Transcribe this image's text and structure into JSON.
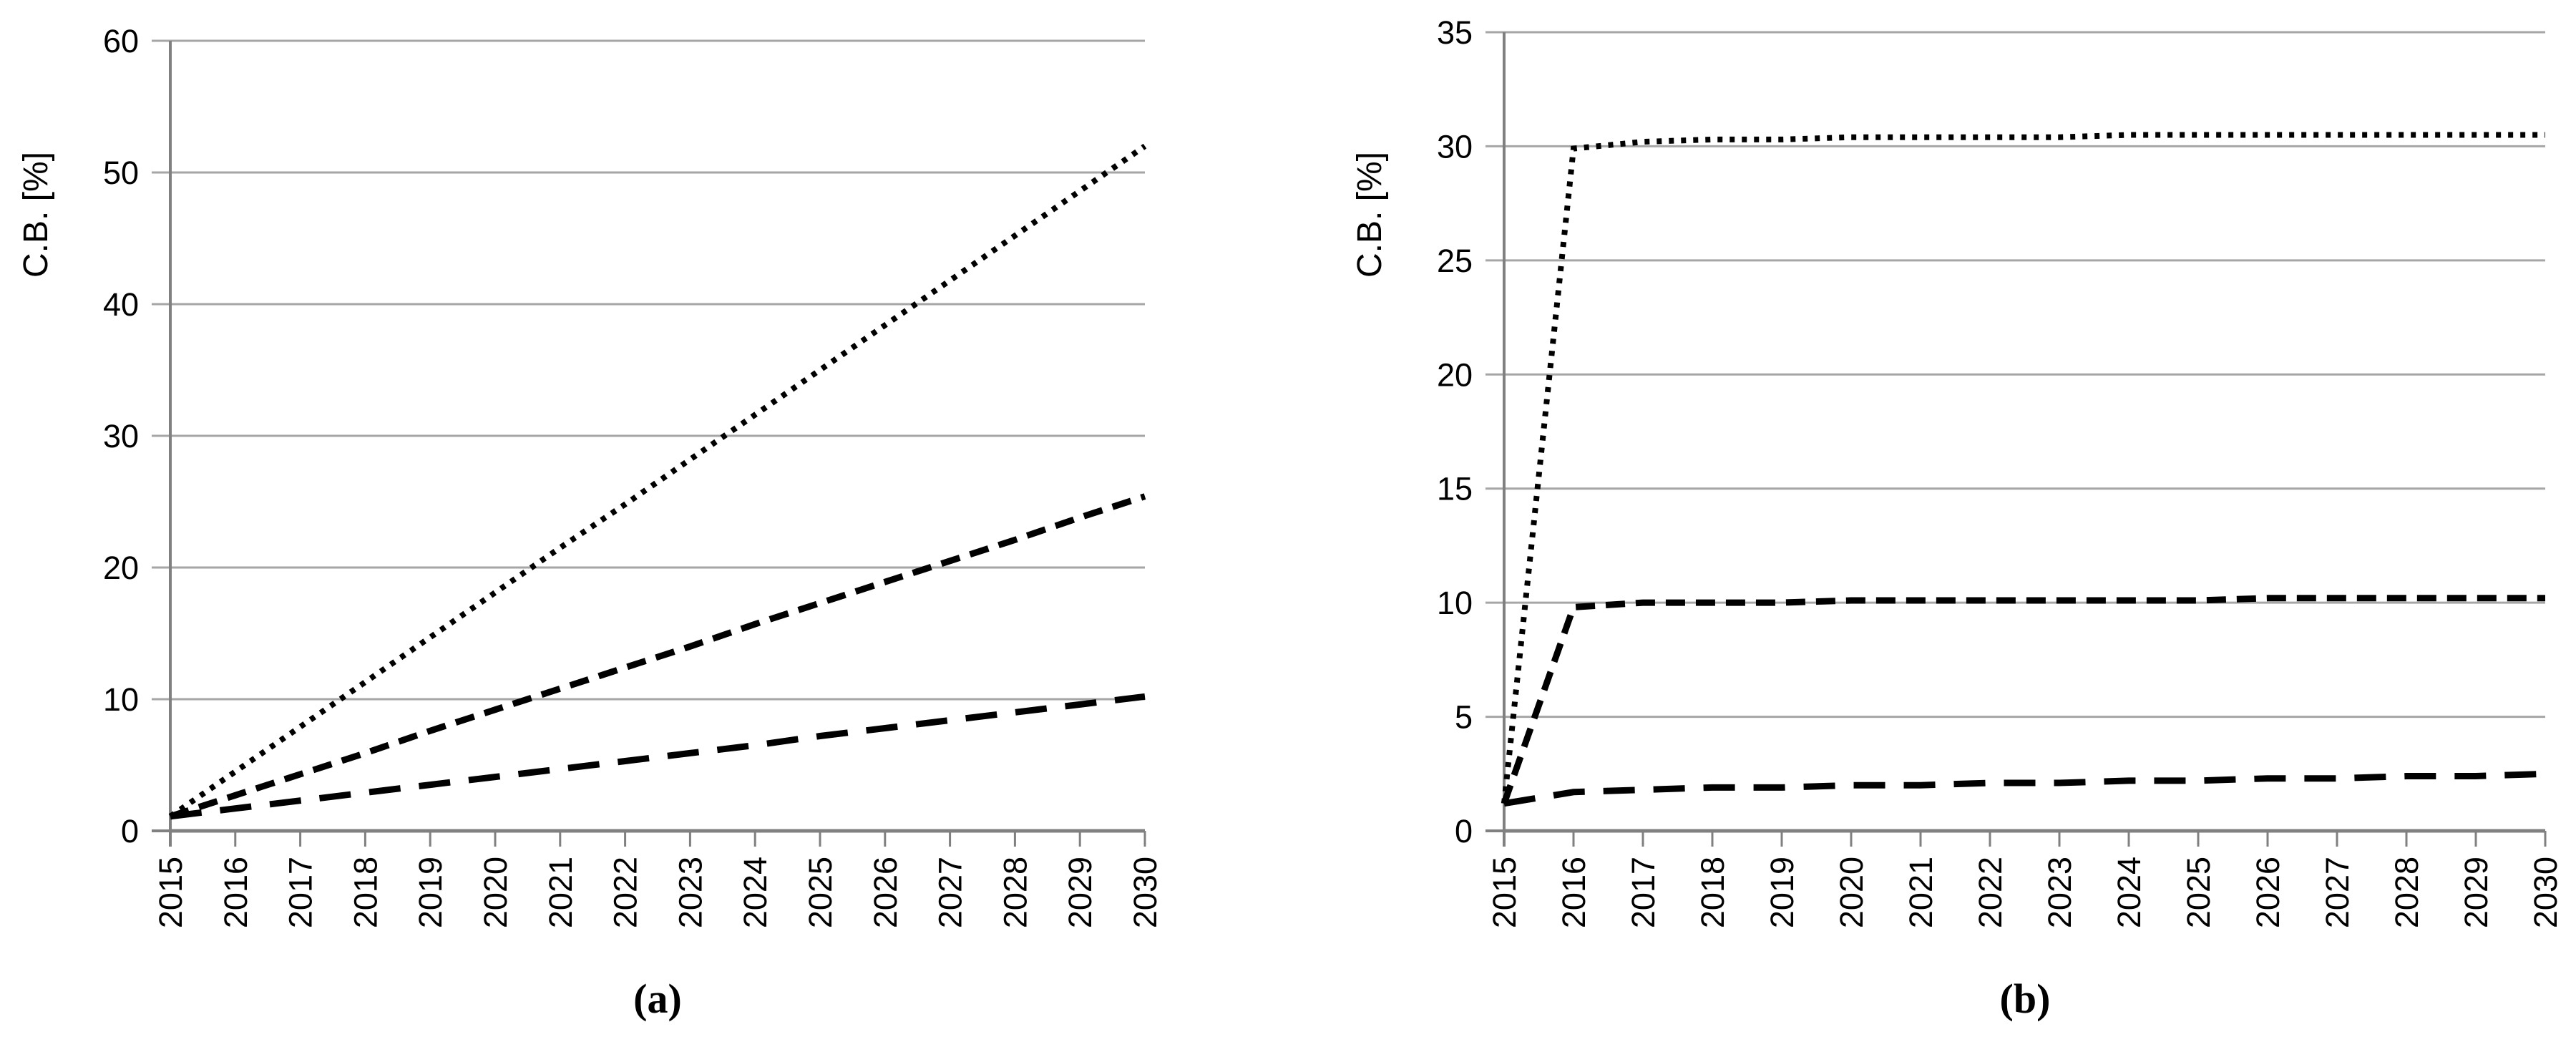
{
  "page": {
    "background": "#ffffff"
  },
  "chart_data": [
    {
      "type": "line",
      "caption": "(a)",
      "title": "",
      "ylabel": "C.B. [%]",
      "xlabel": "",
      "legend": "none",
      "grid": "horizontal-only",
      "xlim": [
        2015,
        2030
      ],
      "ylim": [
        0,
        60
      ],
      "yticks": [
        0,
        10,
        20,
        30,
        40,
        50,
        60
      ],
      "x": [
        2015,
        2016,
        2017,
        2018,
        2019,
        2020,
        2021,
        2022,
        2023,
        2024,
        2025,
        2026,
        2027,
        2028,
        2029,
        2030
      ],
      "xtick_labels": [
        "2015",
        "2016",
        "2017",
        "2018",
        "2019",
        "2020",
        "2021",
        "2022",
        "2023",
        "2024",
        "2025",
        "2026",
        "2027",
        "2028",
        "2029",
        "2030"
      ],
      "colors": {
        "line": "#000000",
        "grid": "#a6a6a6",
        "axis": "#808080",
        "text": "#000000"
      },
      "series": [
        {
          "name": "dotted",
          "style": "dotted",
          "values": [
            1.1,
            4.5,
            7.9,
            11.3,
            14.7,
            18.1,
            21.5,
            24.8,
            28.2,
            31.6,
            35.0,
            38.4,
            41.8,
            45.2,
            48.6,
            52.0
          ]
        },
        {
          "name": "short-dash",
          "style": "short-dash",
          "values": [
            1.1,
            2.7,
            4.3,
            5.9,
            7.6,
            9.2,
            10.8,
            12.4,
            14.0,
            15.7,
            17.3,
            18.9,
            20.5,
            22.1,
            23.8,
            25.4
          ]
        },
        {
          "name": "long-dash",
          "style": "long-dash",
          "values": [
            1.1,
            1.7,
            2.3,
            2.9,
            3.5,
            4.1,
            4.7,
            5.3,
            5.9,
            6.5,
            7.2,
            7.8,
            8.4,
            9.0,
            9.6,
            10.2
          ]
        }
      ]
    },
    {
      "type": "line",
      "caption": "(b)",
      "title": "",
      "ylabel": "C.B. [%]",
      "xlabel": "",
      "legend": "none",
      "grid": "horizontal-only",
      "xlim": [
        2015,
        2030
      ],
      "ylim": [
        0,
        35
      ],
      "yticks": [
        0,
        5,
        10,
        15,
        20,
        25,
        30,
        35
      ],
      "x": [
        2015,
        2016,
        2017,
        2018,
        2019,
        2020,
        2021,
        2022,
        2023,
        2024,
        2025,
        2026,
        2027,
        2028,
        2029,
        2030
      ],
      "xtick_labels": [
        "2015",
        "2016",
        "2017",
        "2018",
        "2019",
        "2020",
        "2021",
        "2022",
        "2023",
        "2024",
        "2025",
        "2026",
        "2027",
        "2028",
        "2029",
        "2030"
      ],
      "colors": {
        "line": "#000000",
        "grid": "#a6a6a6",
        "axis": "#808080",
        "text": "#000000"
      },
      "series": [
        {
          "name": "dotted",
          "style": "dotted",
          "values": [
            1.2,
            29.9,
            30.2,
            30.3,
            30.3,
            30.4,
            30.4,
            30.4,
            30.4,
            30.5,
            30.5,
            30.5,
            30.5,
            30.5,
            30.5,
            30.5
          ]
        },
        {
          "name": "short-dash",
          "style": "short-dash",
          "values": [
            1.2,
            9.8,
            10.0,
            10.0,
            10.0,
            10.1,
            10.1,
            10.1,
            10.1,
            10.1,
            10.1,
            10.2,
            10.2,
            10.2,
            10.2,
            10.2
          ]
        },
        {
          "name": "long-dash",
          "style": "long-dash",
          "values": [
            1.2,
            1.7,
            1.8,
            1.9,
            1.9,
            2.0,
            2.0,
            2.1,
            2.1,
            2.2,
            2.2,
            2.3,
            2.3,
            2.4,
            2.4,
            2.5
          ]
        }
      ]
    }
  ]
}
